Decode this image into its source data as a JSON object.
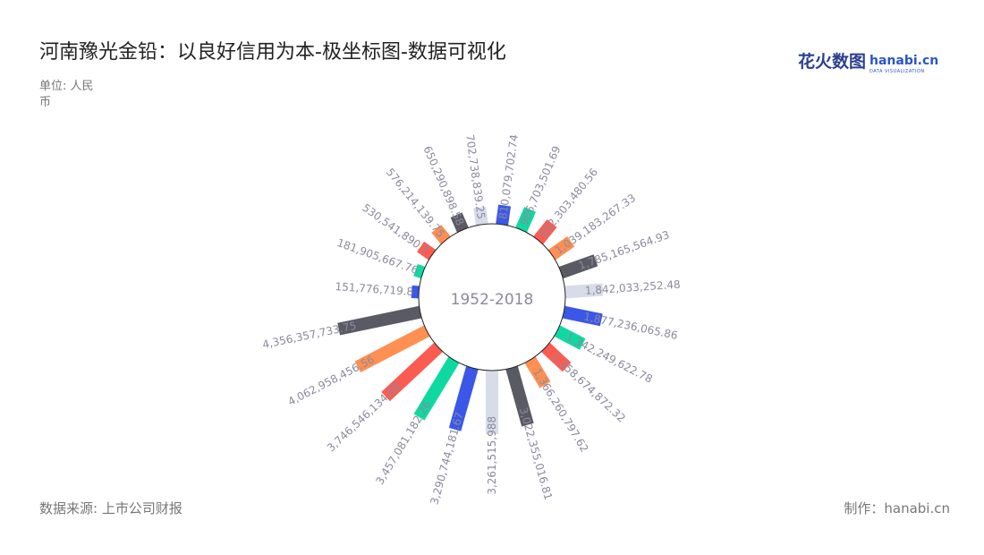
{
  "title": "河南豫光金铅：以良好信用为本-极坐标图-数据可视化",
  "unit": "单位: 人民币",
  "source": "数据来源: 上市公司财报",
  "maker": "制作：hanabi.cn",
  "logo": {
    "cn": "花火数图",
    "en": "hanabi.cn",
    "sub": "DATA VISUALIZATION"
  },
  "chart_data": {
    "type": "polar-bar",
    "center_label": "1952-2018",
    "values": [
      810079702.74,
      986703501.69,
      952303480.56,
      1039183267.33,
      1785165564.93,
      1842033252.48,
      1877236065.86,
      1342249622.78,
      1358674872.32,
      1366260797.62,
      3022355016.81,
      3261515988.0,
      3290744181.67,
      3457081182.26,
      3746546134.68,
      4062958456.56,
      4356357733.75,
      151776719.8,
      181905667.76,
      530541890.7,
      576214139.75,
      650290898.58,
      702738839.25
    ],
    "labels": [
      "810,079,702.74",
      "986,703,501.69",
      "952,303,480.56",
      "1,039,183,267.33",
      "1,785,165,564.93",
      "1,842,033,252.48",
      "1,877,236,065.86",
      "1,342,249,622.78",
      "1,358,674,872.32",
      "1,366,260,797.62",
      "3,022,355,016.81",
      "3,261,515,988",
      "3,290,744,181.67",
      "3,457,081,182.26",
      "3,746,546,134.68",
      "4,062,958,456.56",
      "4,356,357,733.75",
      "151,776,719.8",
      "181,905,667.76",
      "530,541,890.7",
      "576,214,139.75",
      "650,290,898.58",
      "702,738,839.25"
    ],
    "colors": [
      "#3a57e8",
      "#0fd9a0",
      "#fc5b52",
      "#ff8f52",
      "#5a5a64",
      "#d8dce8",
      "#3a57e8",
      "#0fd9a0",
      "#fc5b52",
      "#ff8f52",
      "#5a5a64",
      "#d8dce8",
      "#3a57e8",
      "#0fd9a0",
      "#fc5b52",
      "#ff8f52",
      "#5a5a64",
      "#3a57e8",
      "#0fd9a0",
      "#fc5b52",
      "#ff8f52",
      "#5a5a64",
      "#d8dce8"
    ],
    "label_color": "#8a8a9e"
  }
}
